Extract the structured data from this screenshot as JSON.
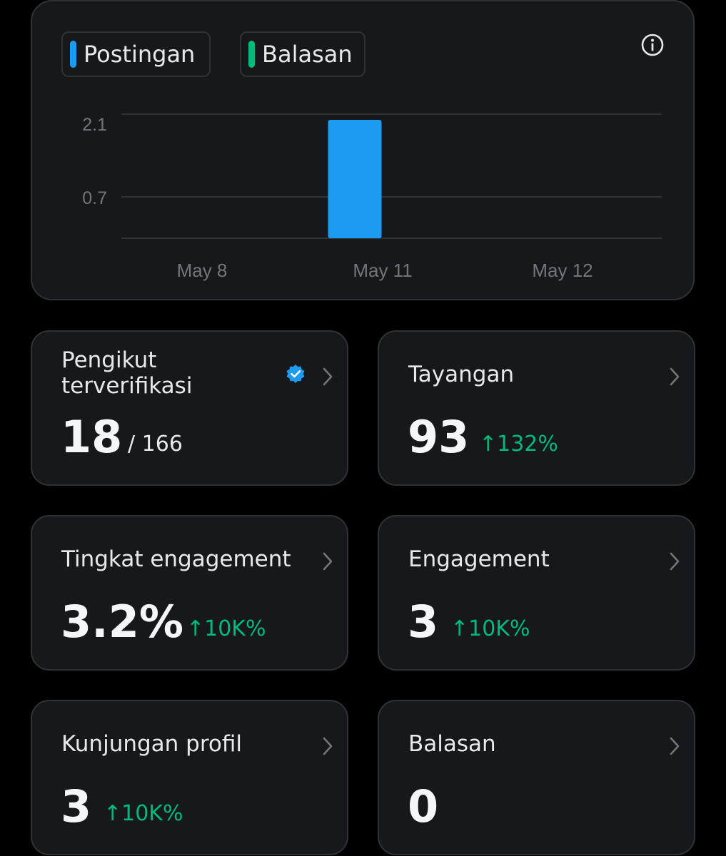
{
  "colors": {
    "posts": "#1d9bf0",
    "replies": "#00ba7c",
    "positive_change": "#00ba7c",
    "card_bg": "#16181c",
    "card_border": "#2f3336",
    "verified": "#1d9bf0"
  },
  "legend": {
    "posts_label": "Postingan",
    "replies_label": "Balasan"
  },
  "chart_data": {
    "type": "bar",
    "categories": [
      "May 8",
      "May 11",
      "May 12"
    ],
    "series": [
      {
        "name": "Postingan",
        "values": [
          0,
          2,
          0
        ]
      },
      {
        "name": "Balasan",
        "values": [
          0,
          0,
          0
        ]
      }
    ],
    "y_ticks": [
      "2.1",
      "0.7"
    ],
    "x_ticks": [
      "May 8",
      "May 11",
      "May 12"
    ],
    "grid": true
  },
  "stats": {
    "verified_followers": {
      "title_line1": "Pengikut",
      "title_line2": "terverifikasi",
      "value": "18",
      "total": "/ 166",
      "icon": "verified-badge-icon"
    },
    "impressions": {
      "title": "Tayangan",
      "value": "93",
      "change": "↑132%"
    },
    "engagement_rate": {
      "title": "Tingkat engagement",
      "value": "3.2%",
      "change": "↑10K%"
    },
    "engagements": {
      "title": "Engagement",
      "value": "3",
      "change": "↑10K%"
    },
    "profile_visits": {
      "title": "Kunjungan profil",
      "value": "3",
      "change": "↑10K%"
    },
    "replies": {
      "title": "Balasan",
      "value": "0"
    }
  }
}
